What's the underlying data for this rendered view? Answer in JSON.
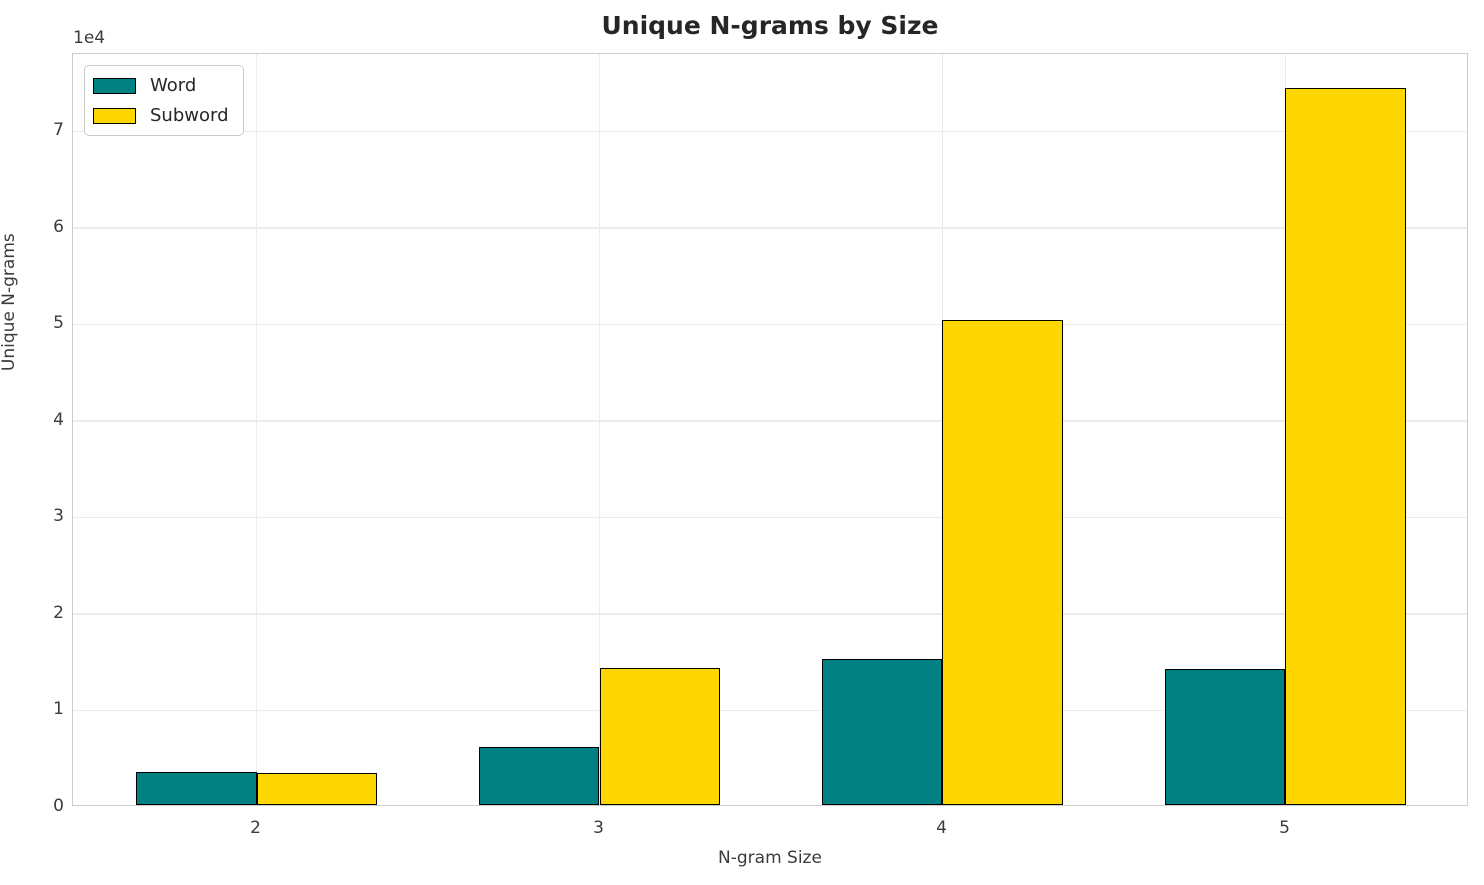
{
  "chart_data": {
    "type": "bar",
    "title": "Unique N-grams by Size",
    "xlabel": "N-gram Size",
    "ylabel": "Unique N-grams",
    "offset_text": "1e4",
    "categories": [
      2,
      3,
      4,
      5
    ],
    "series": [
      {
        "name": "Word",
        "color": "#008080",
        "values": [
          3400,
          6000,
          15100,
          14100
        ]
      },
      {
        "name": "Subword",
        "color": "#FFD700",
        "values": [
          3300,
          14200,
          50200,
          74300
        ]
      }
    ],
    "bar_edge_color": "#000000",
    "bar_width_units": 0.35,
    "xlim": [
      1.465,
      5.535
    ],
    "ylim": [
      0,
      78015
    ],
    "yticks": [
      0,
      10000,
      20000,
      30000,
      40000,
      50000,
      60000,
      70000
    ],
    "ytick_labels": [
      "0",
      "1",
      "2",
      "3",
      "4",
      "5",
      "6",
      "7"
    ],
    "xtick_labels": [
      "2",
      "3",
      "4",
      "5"
    ],
    "grid": true,
    "legend_position": "upper left"
  },
  "colors": {
    "grid": "#ececec",
    "spine": "#cccccc",
    "title_text": "#262626",
    "tick_text": "#3b3b3b",
    "word_bar": "#008080",
    "subword_bar": "#FFD700",
    "bar_edge": "#000000"
  }
}
